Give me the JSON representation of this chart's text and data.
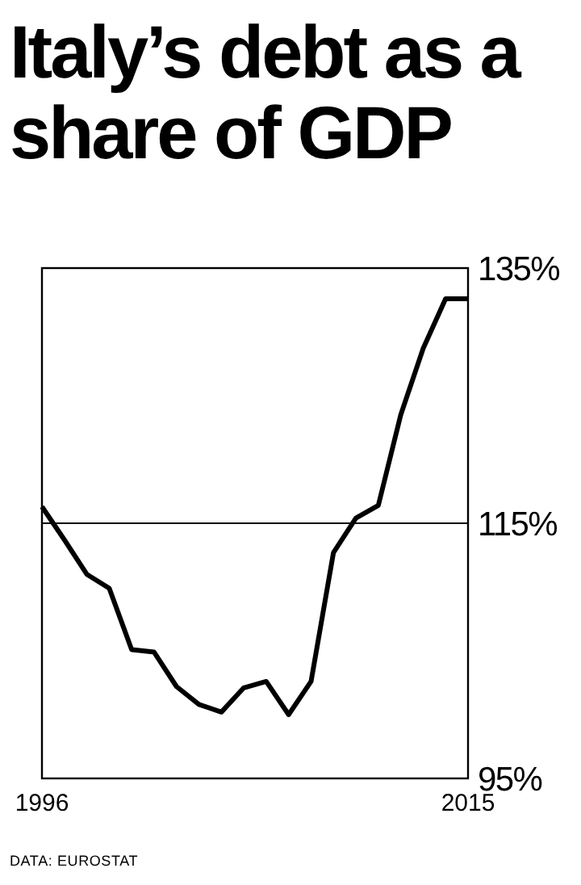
{
  "chart_data": {
    "type": "line",
    "title": "Italy’s debt as a share of GDP",
    "x": [
      1996,
      1997,
      1998,
      1999,
      2000,
      2001,
      2002,
      2003,
      2004,
      2005,
      2006,
      2007,
      2008,
      2009,
      2010,
      2011,
      2012,
      2013,
      2014,
      2015
    ],
    "series": [
      {
        "color": "#000000",
        "values": [
          116.3,
          113.7,
          111.0,
          109.9,
          105.1,
          104.9,
          102.2,
          100.8,
          100.2,
          102.1,
          102.6,
          100.0,
          102.6,
          112.7,
          115.4,
          116.4,
          123.5,
          128.7,
          132.6,
          132.6
        ]
      }
    ],
    "xlim": [
      1996,
      2015
    ],
    "xticks": [
      1996,
      2015
    ],
    "ylim": [
      95,
      135
    ],
    "yticks": [
      {
        "value": 95,
        "label": "95%"
      },
      {
        "value": 115,
        "label": "115%"
      },
      {
        "value": 135,
        "label": "135%"
      }
    ],
    "grid": "y",
    "line_style": "solid",
    "marker": "none",
    "annotations": [
      "DATA: EUROSTAT"
    ]
  }
}
